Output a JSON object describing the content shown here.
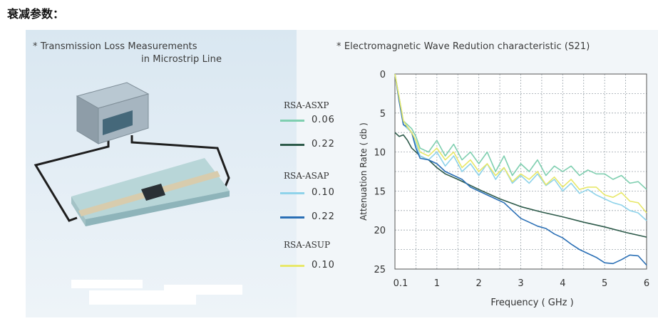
{
  "page": {
    "heading": "衰减参数：",
    "left_title_1": "* Transmission Loss Measurements",
    "left_title_2": "in Microstrip Line",
    "right_title": "* Electromagnetic Wave Redution characteristic (S21)"
  },
  "legend": {
    "groups": [
      {
        "name": "RSA-ASXP",
        "items": [
          {
            "value": "0.06",
            "color": "#7fcfb0"
          },
          {
            "value": "0.22",
            "color": "#2d5a4a"
          }
        ]
      },
      {
        "name": "RSA-ASAP",
        "items": [
          {
            "value": "0.10",
            "color": "#8fd3ea"
          },
          {
            "value": "0.22",
            "color": "#2a6fb5"
          }
        ]
      },
      {
        "name": "RSA-ASUP",
        "items": [
          {
            "value": "0.10",
            "color": "#e8e86a"
          }
        ]
      }
    ]
  },
  "chart_data": {
    "type": "line",
    "title": "* Electromagnetic Wave Redution characteristic (S21)",
    "xlabel": "Frequency ( GHz )",
    "ylabel": "Attenuation Rate ( db )",
    "xlim": [
      0,
      6
    ],
    "ylim": [
      0,
      25
    ],
    "y_inverted": true,
    "grid": true,
    "x_ticks": [
      {
        "value": 0.1,
        "label": "0.1"
      },
      {
        "value": 1,
        "label": "1"
      },
      {
        "value": 2,
        "label": "2"
      },
      {
        "value": 3,
        "label": "3"
      },
      {
        "value": 4,
        "label": "4"
      },
      {
        "value": 5,
        "label": "5"
      },
      {
        "value": 6,
        "label": "6"
      }
    ],
    "y_ticks": [
      {
        "value": 0,
        "label": "0"
      },
      {
        "value": 5,
        "label": "5"
      },
      {
        "value": 10,
        "label": "10"
      },
      {
        "value": 15,
        "label": "15"
      },
      {
        "value": 20,
        "label": "20"
      },
      {
        "value": 25,
        "label": "25"
      }
    ],
    "series": [
      {
        "name": "RSA-ASXP 0.06",
        "color": "#7fcfb0",
        "x": [
          0,
          0.1,
          0.2,
          0.3,
          0.4,
          0.5,
          0.6,
          0.8,
          1.0,
          1.2,
          1.4,
          1.6,
          1.8,
          2.0,
          2.2,
          2.4,
          2.6,
          2.8,
          3.0,
          3.2,
          3.4,
          3.6,
          3.8,
          4.0,
          4.2,
          4.4,
          4.6,
          4.8,
          5.0,
          5.2,
          5.4,
          5.6,
          5.8,
          6.0
        ],
        "values": [
          0,
          3,
          6,
          6.5,
          7,
          8,
          9.5,
          10,
          8.5,
          10.5,
          9,
          11,
          10,
          11.5,
          10,
          12.5,
          10.5,
          13,
          11.5,
          12.5,
          11,
          13,
          11.8,
          12.5,
          11.8,
          13,
          12.3,
          12.8,
          12.8,
          13.5,
          13,
          14,
          13.8,
          14.8
        ]
      },
      {
        "name": "RSA-ASXP 0.22",
        "color": "#2d5a4a",
        "x": [
          0,
          0.1,
          0.2,
          0.3,
          0.4,
          0.6,
          0.8,
          1.0,
          1.2,
          1.5,
          2.0,
          2.5,
          3.0,
          3.5,
          4.0,
          4.5,
          5.0,
          5.5,
          6.0
        ],
        "values": [
          7.5,
          8,
          7.8,
          8.5,
          9.5,
          10.5,
          11,
          12,
          12.8,
          13.5,
          14.8,
          16,
          17,
          17.7,
          18.3,
          19,
          19.6,
          20.3,
          20.9
        ]
      },
      {
        "name": "RSA-ASAP 0.10",
        "color": "#8fd3ea",
        "x": [
          0,
          0.1,
          0.2,
          0.3,
          0.4,
          0.5,
          0.6,
          0.8,
          1.0,
          1.2,
          1.4,
          1.6,
          1.8,
          2.0,
          2.2,
          2.4,
          2.6,
          2.8,
          3.0,
          3.2,
          3.4,
          3.6,
          3.8,
          4.0,
          4.2,
          4.4,
          4.6,
          4.8,
          5.0,
          5.2,
          5.4,
          5.6,
          5.8,
          6.0
        ],
        "values": [
          0,
          3,
          6.5,
          7,
          7.5,
          9,
          10.5,
          11,
          10,
          11.8,
          10.5,
          12.5,
          11.5,
          13,
          11.5,
          13.5,
          12,
          14,
          13,
          14,
          12.8,
          14.3,
          13.5,
          15,
          14,
          15.3,
          14.8,
          15.5,
          16,
          16.5,
          16.8,
          17.5,
          17.8,
          18.8
        ]
      },
      {
        "name": "RSA-ASAP 0.22",
        "color": "#2a6fb5",
        "x": [
          0,
          0.1,
          0.2,
          0.3,
          0.4,
          0.5,
          0.6,
          0.8,
          1.0,
          1.2,
          1.4,
          1.6,
          1.8,
          2.0,
          2.2,
          2.4,
          2.6,
          2.8,
          3.0,
          3.2,
          3.4,
          3.6,
          3.8,
          4.0,
          4.2,
          4.4,
          4.6,
          4.8,
          5.0,
          5.2,
          5.4,
          5.6,
          5.8,
          6.0
        ],
        "values": [
          0,
          3.5,
          6.5,
          6.8,
          7.5,
          9.5,
          10.8,
          11,
          11.5,
          12.5,
          13,
          13.5,
          14.5,
          15,
          15.5,
          16,
          16.5,
          17.5,
          18.5,
          19,
          19.5,
          19.8,
          20.5,
          21,
          21.8,
          22.5,
          23,
          23.5,
          24.2,
          24.3,
          23.8,
          23.2,
          23.3,
          24.5
        ]
      },
      {
        "name": "RSA-ASUP 0.10",
        "color": "#e8e86a",
        "x": [
          0,
          0.1,
          0.2,
          0.3,
          0.4,
          0.5,
          0.6,
          0.8,
          1.0,
          1.2,
          1.4,
          1.6,
          1.8,
          2.0,
          2.2,
          2.4,
          2.6,
          2.8,
          3.0,
          3.2,
          3.4,
          3.6,
          3.8,
          4.0,
          4.2,
          4.4,
          4.6,
          4.8,
          5.0,
          5.2,
          5.4,
          5.6,
          5.8,
          6.0
        ],
        "values": [
          0,
          3,
          6,
          6.8,
          7.5,
          8.5,
          10,
          10.5,
          9.5,
          11,
          10,
          12,
          11,
          12.5,
          11.5,
          13,
          12,
          13.8,
          12.8,
          13.5,
          12.5,
          14.2,
          13.2,
          14.5,
          13.5,
          14.8,
          14.5,
          14.5,
          15.5,
          15.8,
          15.2,
          16.3,
          16.5,
          17.8
        ]
      }
    ]
  }
}
